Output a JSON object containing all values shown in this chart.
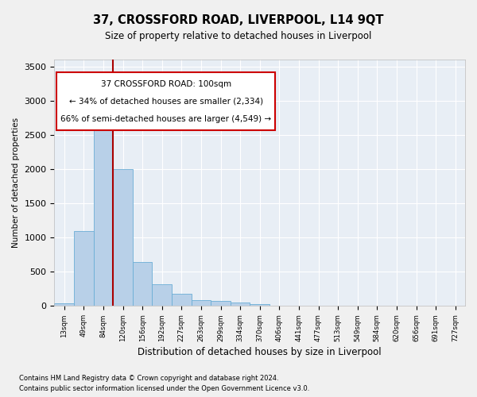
{
  "title": "37, CROSSFORD ROAD, LIVERPOOL, L14 9QT",
  "subtitle": "Size of property relative to detached houses in Liverpool",
  "xlabel": "Distribution of detached houses by size in Liverpool",
  "ylabel": "Number of detached properties",
  "footnote1": "Contains HM Land Registry data © Crown copyright and database right 2024.",
  "footnote2": "Contains public sector information licensed under the Open Government Licence v3.0.",
  "annotation_line1": "37 CROSSFORD ROAD: 100sqm",
  "annotation_line2": "← 34% of detached houses are smaller (2,334)",
  "annotation_line3": "66% of semi-detached houses are larger (4,549) →",
  "bar_color": "#b8d0e8",
  "bar_edge_color": "#6baed6",
  "bg_color": "#e8eef5",
  "grid_color": "#ffffff",
  "vline_color": "#aa0000",
  "vline_x_idx": 2,
  "categories": [
    "13sqm",
    "49sqm",
    "84sqm",
    "120sqm",
    "156sqm",
    "192sqm",
    "227sqm",
    "263sqm",
    "299sqm",
    "334sqm",
    "370sqm",
    "406sqm",
    "441sqm",
    "477sqm",
    "513sqm",
    "549sqm",
    "584sqm",
    "620sqm",
    "656sqm",
    "691sqm",
    "727sqm"
  ],
  "values": [
    40,
    1090,
    3290,
    2000,
    640,
    320,
    175,
    90,
    80,
    50,
    25,
    10,
    5,
    3,
    2,
    1,
    0,
    0,
    0,
    0,
    0
  ],
  "ylim": [
    0,
    3600
  ],
  "yticks": [
    0,
    500,
    1000,
    1500,
    2000,
    2500,
    3000,
    3500
  ]
}
